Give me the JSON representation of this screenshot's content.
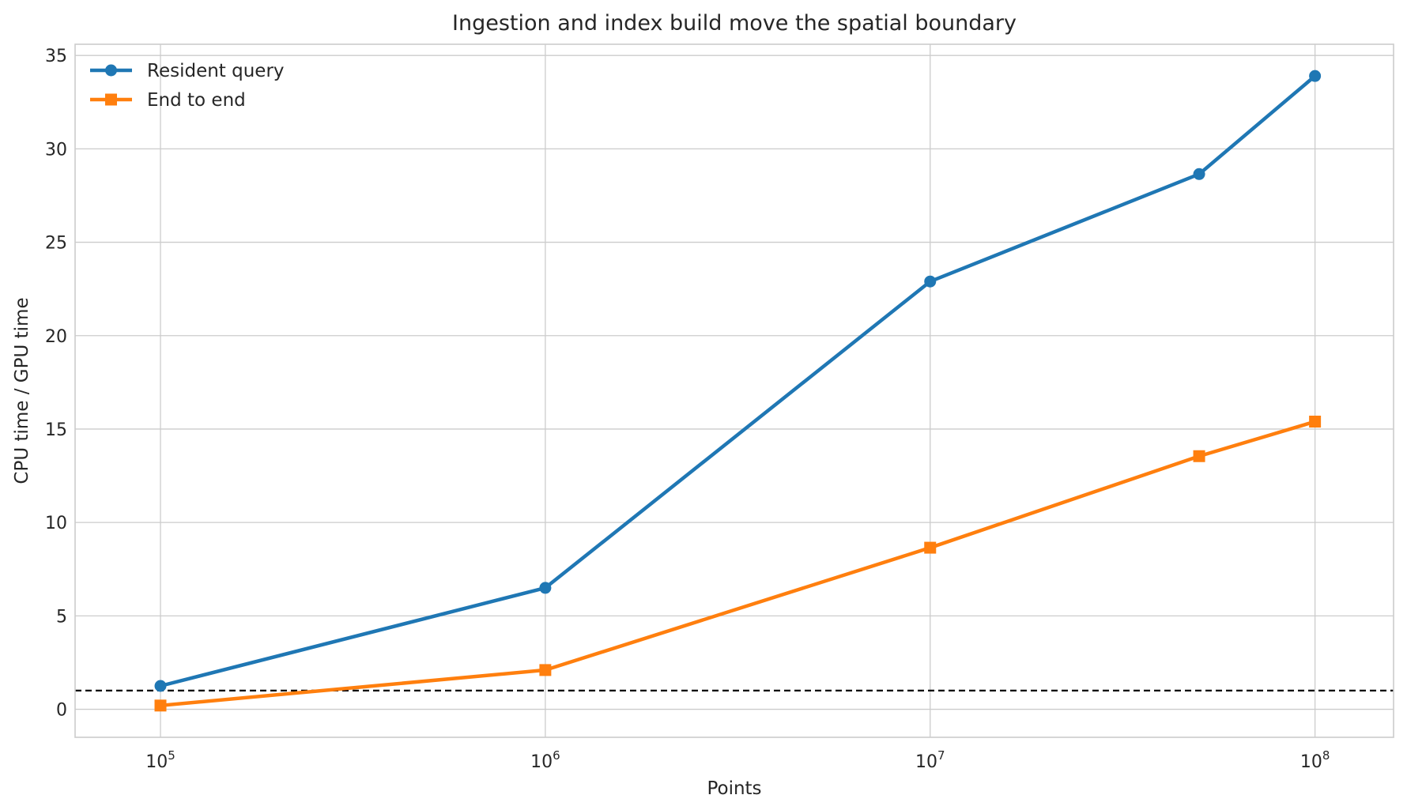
{
  "chart_data": {
    "type": "line",
    "title": "Ingestion and index build move the spatial boundary",
    "xlabel": "Points",
    "ylabel": "CPU time / GPU time",
    "xscale": "log",
    "xlim": [
      60000,
      160000000
    ],
    "ylim": [
      -1.5,
      35.6
    ],
    "x": [
      100000,
      1000000,
      10000000,
      50000000,
      100000000
    ],
    "x_ticks": [
      {
        "value": 100000,
        "base": "10",
        "exponent": "5"
      },
      {
        "value": 1000000,
        "base": "10",
        "exponent": "6"
      },
      {
        "value": 10000000,
        "base": "10",
        "exponent": "7"
      },
      {
        "value": 100000000,
        "base": "10",
        "exponent": "8"
      }
    ],
    "y_ticks": [
      0,
      5,
      10,
      15,
      20,
      25,
      30,
      35
    ],
    "series": [
      {
        "name": "Resident query",
        "values": [
          1.25,
          6.5,
          22.9,
          28.65,
          33.9
        ],
        "color": "#1f77b4",
        "marker": "circle"
      },
      {
        "name": "End to end",
        "values": [
          0.2,
          2.1,
          8.65,
          13.55,
          15.4
        ],
        "color": "#ff7f0e",
        "marker": "square"
      }
    ],
    "reference_line": {
      "y": 1,
      "style": "dashed",
      "color": "#000000"
    },
    "grid": true,
    "legend_position": "top-left"
  }
}
